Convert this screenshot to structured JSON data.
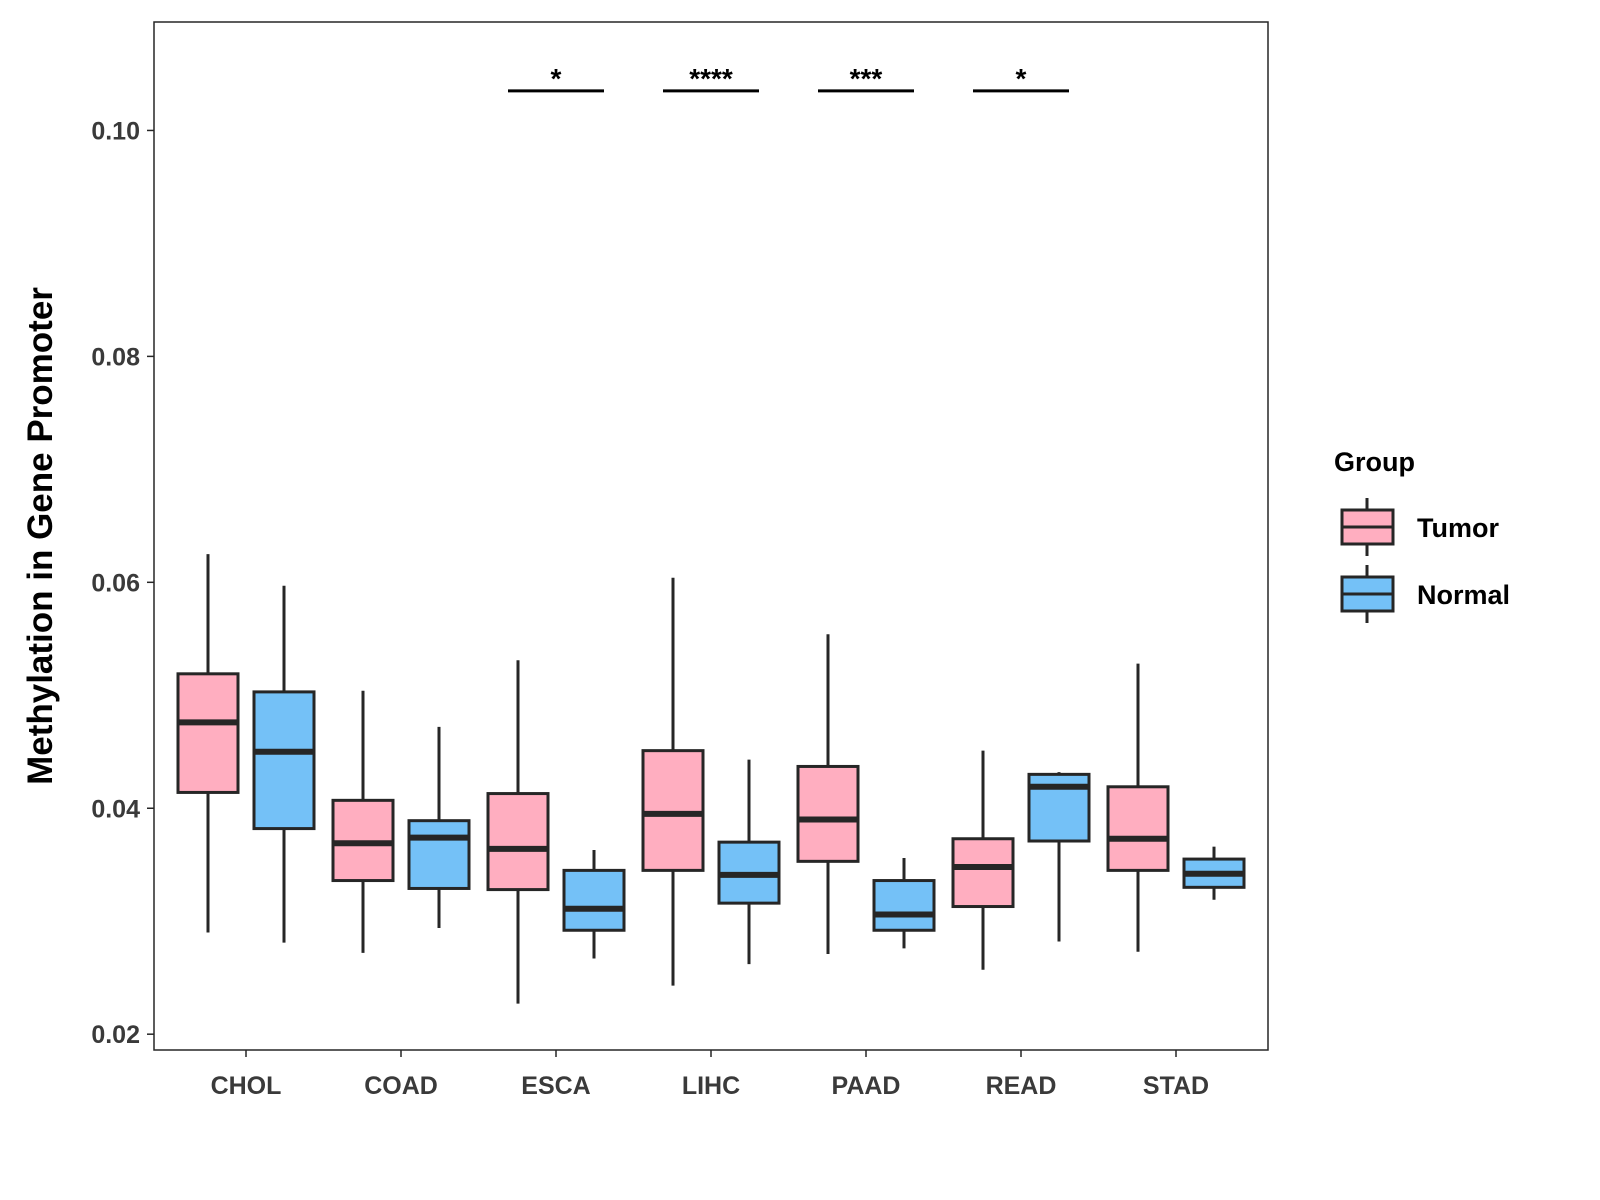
{
  "chart_data": {
    "type": "boxplot",
    "title": "",
    "xlabel": "",
    "ylabel": "Methylation in Gene Promoter",
    "ylim": [
      0.0186,
      0.1096
    ],
    "yticks": [
      "0.02",
      "0.04",
      "0.06",
      "0.08",
      "0.10"
    ],
    "ytick_values": [
      0.02,
      0.04,
      0.06,
      0.08,
      0.1
    ],
    "grid": false,
    "categories": [
      "CHOL",
      "COAD",
      "ESCA",
      "LIHC",
      "PAAD",
      "READ",
      "STAD"
    ],
    "legend": {
      "title": "Group",
      "placement": "right",
      "entries": [
        "Tumor",
        "Normal"
      ]
    },
    "colors": {
      "Tumor": "#FFAEC0",
      "Normal": "#74C1F7",
      "outline": "#262626"
    },
    "series": [
      {
        "name": "Tumor",
        "boxes": [
          {
            "min": 0.029,
            "q1": 0.0414,
            "median": 0.0476,
            "q3": 0.0519,
            "max": 0.0625
          },
          {
            "min": 0.0272,
            "q1": 0.0336,
            "median": 0.0369,
            "q3": 0.0407,
            "max": 0.0504
          },
          {
            "min": 0.0227,
            "q1": 0.0328,
            "median": 0.0364,
            "q3": 0.0413,
            "max": 0.0531
          },
          {
            "min": 0.0243,
            "q1": 0.0345,
            "median": 0.0395,
            "q3": 0.0451,
            "max": 0.0604
          },
          {
            "min": 0.0271,
            "q1": 0.0353,
            "median": 0.039,
            "q3": 0.0437,
            "max": 0.0554
          },
          {
            "min": 0.0257,
            "q1": 0.0313,
            "median": 0.0348,
            "q3": 0.0373,
            "max": 0.0451
          },
          {
            "min": 0.0273,
            "q1": 0.0345,
            "median": 0.0373,
            "q3": 0.0419,
            "max": 0.0528
          }
        ]
      },
      {
        "name": "Normal",
        "boxes": [
          {
            "min": 0.0281,
            "q1": 0.0382,
            "median": 0.045,
            "q3": 0.0503,
            "max": 0.0597
          },
          {
            "min": 0.0294,
            "q1": 0.0329,
            "median": 0.0374,
            "q3": 0.0389,
            "max": 0.0472
          },
          {
            "min": 0.0267,
            "q1": 0.0292,
            "median": 0.0311,
            "q3": 0.0345,
            "max": 0.0363
          },
          {
            "min": 0.0262,
            "q1": 0.0316,
            "median": 0.0341,
            "q3": 0.037,
            "max": 0.0443
          },
          {
            "min": 0.0276,
            "q1": 0.0292,
            "median": 0.0306,
            "q3": 0.0336,
            "max": 0.0356
          },
          {
            "min": 0.0282,
            "q1": 0.0371,
            "median": 0.0419,
            "q3": 0.043,
            "max": 0.0432
          },
          {
            "min": 0.0319,
            "q1": 0.033,
            "median": 0.0342,
            "q3": 0.0355,
            "max": 0.0366
          }
        ]
      }
    ],
    "annotations": [
      {
        "category": "ESCA",
        "label": "*",
        "y": 0.1035
      },
      {
        "category": "LIHC",
        "label": "****",
        "y": 0.1035
      },
      {
        "category": "PAAD",
        "label": "***",
        "y": 0.1035
      },
      {
        "category": "READ",
        "label": "*",
        "y": 0.1035
      }
    ]
  }
}
